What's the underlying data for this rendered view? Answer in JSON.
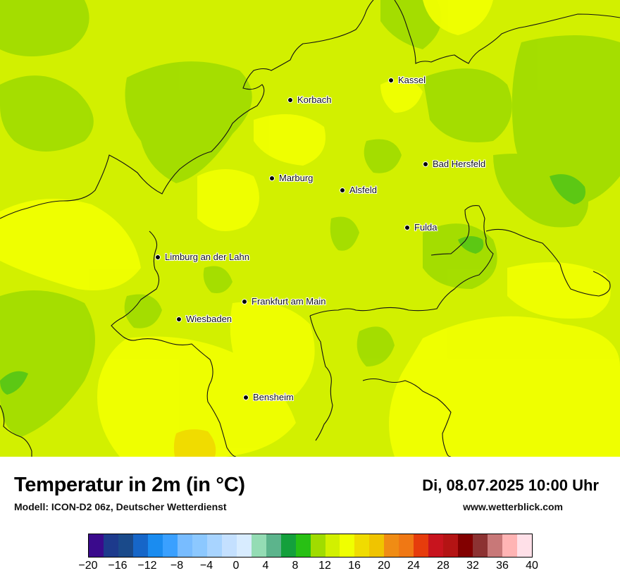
{
  "title": "Temperatur in 2m (in °C)",
  "model_info": "Modell: ICON-D2 06z, Deutscher Wetterdienst",
  "datetime": "Di, 08.07.2025 10:00 Uhr",
  "website": "www.wetterblick.com",
  "map": {
    "base_color": "#d2f000",
    "cities": [
      {
        "id": "kassel",
        "name": "Kassel"
      },
      {
        "id": "korbach",
        "name": "Korbach"
      },
      {
        "id": "bad-hersfeld",
        "name": "Bad Hersfeld"
      },
      {
        "id": "marburg",
        "name": "Marburg"
      },
      {
        "id": "alsfeld",
        "name": "Alsfeld"
      },
      {
        "id": "fulda",
        "name": "Fulda"
      },
      {
        "id": "limburg",
        "name": "Limburg an der Lahn"
      },
      {
        "id": "frankfurt",
        "name": "Frankfurt am Main"
      },
      {
        "id": "wiesbaden",
        "name": "Wiesbaden"
      },
      {
        "id": "bensheim",
        "name": "Bensheim"
      }
    ]
  },
  "color_scale": {
    "min": -20,
    "max": 40,
    "step": 2,
    "tick_labels": [
      "−20",
      "−16",
      "−12",
      "−8",
      "−4",
      "0",
      "4",
      "8",
      "12",
      "16",
      "20",
      "24",
      "28",
      "32",
      "36",
      "40"
    ],
    "colors": [
      "#3a0a8c",
      "#1d3a8c",
      "#1a4a8a",
      "#1666c8",
      "#1a8cf0",
      "#3aa0ff",
      "#78bcff",
      "#8cc8ff",
      "#a8d4ff",
      "#c4e0ff",
      "#d8ecff",
      "#94dcb4",
      "#5cb48c",
      "#14a03c",
      "#28c014",
      "#a0dc00",
      "#d2f000",
      "#f0ff00",
      "#f0dc00",
      "#f0c400",
      "#f08c14",
      "#f07814",
      "#e63c0c",
      "#c8141e",
      "#b41414",
      "#820000",
      "#8c3232",
      "#c87878",
      "#ffb4b4",
      "#ffe0e8"
    ]
  }
}
